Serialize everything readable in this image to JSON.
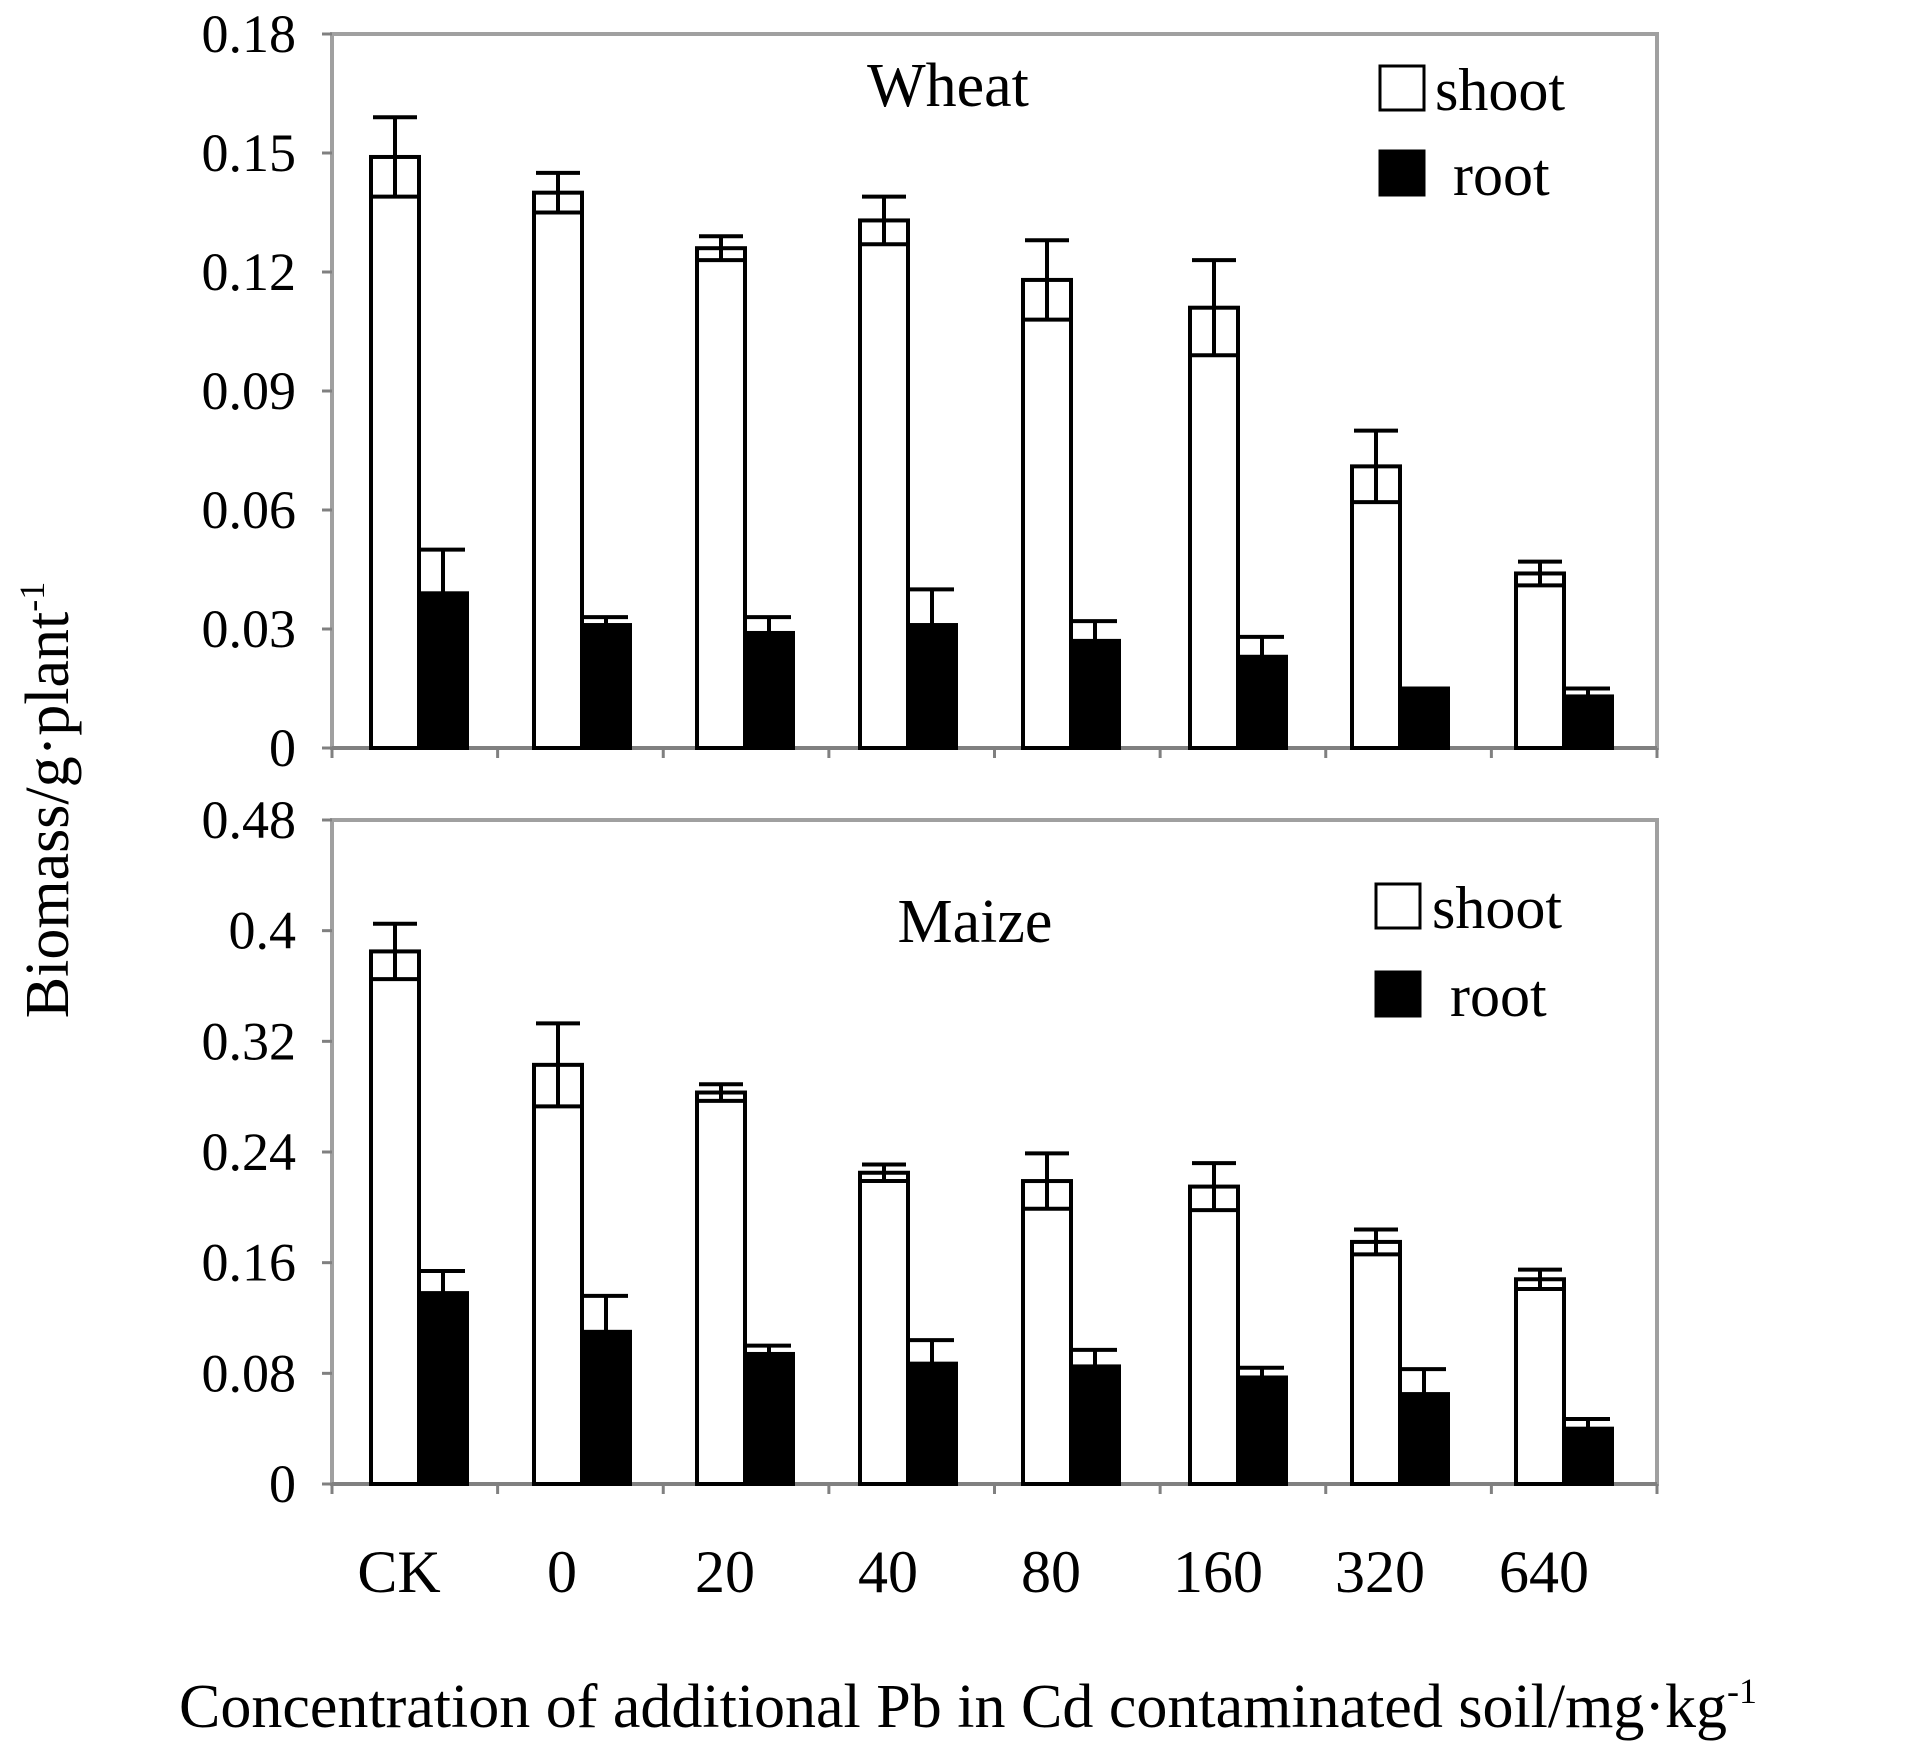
{
  "chart_data": [
    {
      "type": "bar",
      "title": "Wheat",
      "categories": [
        "CK",
        "0",
        "20",
        "40",
        "80",
        "160",
        "320",
        "640"
      ],
      "series": [
        {
          "name": "shoot",
          "values": [
            0.149,
            0.14,
            0.126,
            0.133,
            0.118,
            0.111,
            0.071,
            0.044
          ],
          "errors": [
            0.01,
            0.005,
            0.003,
            0.006,
            0.01,
            0.012,
            0.009,
            0.003
          ]
        },
        {
          "name": "root",
          "values": [
            0.039,
            0.031,
            0.029,
            0.031,
            0.027,
            0.023,
            0.015,
            0.013
          ],
          "errors": [
            0.011,
            0.002,
            0.004,
            0.009,
            0.005,
            0.005,
            0.0,
            0.002
          ]
        }
      ],
      "ylim": [
        0,
        0.18
      ],
      "yticks": [
        "0",
        "0.03",
        "0.06",
        "0.09",
        "0.12",
        "0.15",
        "0.18"
      ],
      "ytick_values": [
        0,
        0.03,
        0.06,
        0.09,
        0.12,
        0.15,
        0.18
      ],
      "legend": [
        "shoot",
        "root"
      ],
      "legend_position": "top-right",
      "grid": false
    },
    {
      "type": "bar",
      "title": "Maize",
      "categories": [
        "CK",
        "0",
        "20",
        "40",
        "80",
        "160",
        "320",
        "640"
      ],
      "series": [
        {
          "name": "shoot",
          "values": [
            0.385,
            0.303,
            0.283,
            0.225,
            0.219,
            0.215,
            0.175,
            0.148
          ],
          "errors": [
            0.02,
            0.03,
            0.006,
            0.006,
            0.02,
            0.017,
            0.009,
            0.007
          ]
        },
        {
          "name": "root",
          "values": [
            0.138,
            0.11,
            0.094,
            0.087,
            0.085,
            0.077,
            0.065,
            0.04
          ],
          "errors": [
            0.016,
            0.026,
            0.006,
            0.017,
            0.012,
            0.007,
            0.018,
            0.007
          ]
        }
      ],
      "ylim": [
        0,
        0.48
      ],
      "yticks": [
        "0",
        "0.08",
        "0.16",
        "0.24",
        "0.32",
        "0.4",
        "0.48"
      ],
      "ytick_values": [
        0,
        0.08,
        0.16,
        0.24,
        0.32,
        0.4,
        0.48
      ],
      "legend": [
        "shoot",
        "root"
      ],
      "legend_position": "top-right",
      "grid": false
    }
  ],
  "axes": {
    "ylabel": "Biomass/g·plant",
    "ylabel_sup": "-1",
    "xlabel": "Concentration of additional Pb in Cd contaminated soil/mg·kg",
    "xlabel_sup": "-1"
  },
  "colors": {
    "shoot": "#ffffff",
    "root": "#000000",
    "frame": "#a0a0a0",
    "axis": "#808080"
  }
}
